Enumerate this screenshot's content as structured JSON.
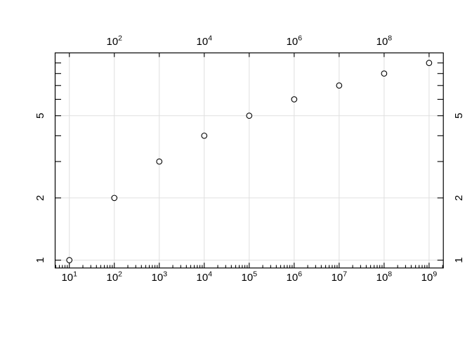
{
  "colors": {
    "background": "#ffffff",
    "grid": "#dfdfdf",
    "axis": "#000000",
    "marker_stroke": "#000000",
    "marker_fill": "#ffffff",
    "text": "#000000"
  },
  "chart_data": {
    "type": "scatter",
    "title": "",
    "xlabel": "",
    "ylabel": "",
    "xscale": "log",
    "yscale": "log",
    "x": [
      10,
      100,
      1000,
      10000,
      100000,
      1000000,
      10000000,
      100000000,
      1000000000
    ],
    "y": [
      1,
      2,
      3,
      4,
      5,
      6,
      7,
      8,
      9
    ],
    "x_log_range": [
      0.684,
      9.317
    ],
    "y_log_range": [
      -0.038,
      1.003
    ],
    "marker": "open-circle",
    "grid": {
      "x_exponents": [
        1,
        2,
        3,
        4,
        5,
        6,
        7,
        8,
        9
      ],
      "y_values": [
        1,
        2,
        5
      ]
    },
    "axes": {
      "bottom": {
        "tick_exponents": [
          1,
          2,
          3,
          4,
          5,
          6,
          7,
          8,
          9
        ],
        "labels": [
          "10^1",
          "10^2",
          "10^3",
          "10^4",
          "10^5",
          "10^6",
          "10^7",
          "10^8",
          "10^9"
        ],
        "minor_ticks": "log-mantissas-2-9"
      },
      "top": {
        "tick_exponents": [
          1,
          2,
          3,
          4,
          5,
          6,
          7,
          8,
          9
        ],
        "labeled_exponents": [
          2,
          4,
          6,
          8
        ],
        "labels": [
          "10^2",
          "10^4",
          "10^6",
          "10^8"
        ]
      },
      "left": {
        "tick_values": [
          1,
          2,
          3,
          4,
          5,
          6,
          7,
          8,
          9
        ],
        "labeled_values": [
          1,
          2,
          5
        ],
        "labels": [
          "1",
          "2",
          "5"
        ]
      },
      "right": {
        "tick_values": [
          1,
          2,
          3,
          4,
          5,
          6,
          7,
          8,
          9
        ],
        "labeled_values": [
          1,
          2,
          5
        ],
        "labels": [
          "1",
          "2",
          "5"
        ]
      }
    }
  }
}
